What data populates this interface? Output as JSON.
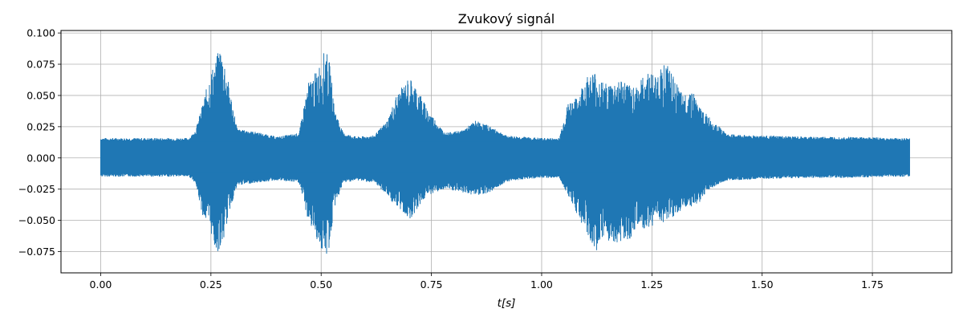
{
  "chart_data": {
    "type": "line",
    "title": "Zvukový signál",
    "xlabel": "t[s]",
    "ylabel": "",
    "xlim": [
      -0.09,
      1.93
    ],
    "ylim": [
      -0.092,
      0.102
    ],
    "xticks": [
      0.0,
      0.25,
      0.5,
      0.75,
      1.0,
      1.25,
      1.5,
      1.75
    ],
    "xtick_labels": [
      "0.00",
      "0.25",
      "0.50",
      "0.75",
      "1.00",
      "1.25",
      "1.50",
      "1.75"
    ],
    "yticks": [
      -0.075,
      -0.05,
      -0.025,
      0.0,
      0.025,
      0.05,
      0.075,
      0.1
    ],
    "ytick_labels": [
      "−0.075",
      "−0.050",
      "−0.025",
      "0.000",
      "0.025",
      "0.050",
      "0.075",
      "0.100"
    ],
    "grid": true,
    "line_color": "#1f77b4",
    "series": [
      {
        "x": [
          0.0,
          0.05,
          0.1,
          0.15,
          0.2,
          0.215,
          0.23,
          0.25,
          0.26,
          0.27,
          0.28,
          0.29,
          0.31,
          0.35,
          0.4,
          0.45,
          0.47,
          0.49,
          0.51,
          0.52,
          0.53,
          0.55,
          0.58,
          0.62,
          0.65,
          0.67,
          0.69,
          0.7,
          0.72,
          0.74,
          0.78,
          0.82,
          0.85,
          0.88,
          0.92,
          0.96,
          1.0,
          1.04,
          1.06,
          1.08,
          1.1,
          1.12,
          1.14,
          1.16,
          1.18,
          1.2,
          1.22,
          1.24,
          1.26,
          1.28,
          1.3,
          1.32,
          1.34,
          1.36,
          1.38,
          1.42,
          1.5,
          1.6,
          1.7,
          1.8,
          1.835
        ],
        "max": [
          0.016,
          0.016,
          0.016,
          0.016,
          0.016,
          0.022,
          0.042,
          0.07,
          0.077,
          0.09,
          0.08,
          0.06,
          0.023,
          0.021,
          0.017,
          0.02,
          0.06,
          0.07,
          0.088,
          0.075,
          0.04,
          0.02,
          0.017,
          0.018,
          0.03,
          0.05,
          0.06,
          0.065,
          0.055,
          0.04,
          0.02,
          0.022,
          0.03,
          0.026,
          0.018,
          0.017,
          0.016,
          0.016,
          0.045,
          0.048,
          0.065,
          0.07,
          0.06,
          0.06,
          0.064,
          0.058,
          0.06,
          0.07,
          0.066,
          0.078,
          0.064,
          0.05,
          0.056,
          0.04,
          0.033,
          0.019,
          0.018,
          0.017,
          0.017,
          0.016,
          0.016
        ],
        "min": [
          -0.015,
          -0.015,
          -0.015,
          -0.015,
          -0.015,
          -0.02,
          -0.045,
          -0.06,
          -0.075,
          -0.075,
          -0.065,
          -0.045,
          -0.022,
          -0.02,
          -0.018,
          -0.02,
          -0.05,
          -0.065,
          -0.083,
          -0.07,
          -0.04,
          -0.02,
          -0.018,
          -0.02,
          -0.03,
          -0.04,
          -0.045,
          -0.05,
          -0.04,
          -0.03,
          -0.025,
          -0.028,
          -0.03,
          -0.028,
          -0.019,
          -0.017,
          -0.016,
          -0.016,
          -0.03,
          -0.045,
          -0.06,
          -0.075,
          -0.07,
          -0.07,
          -0.067,
          -0.065,
          -0.055,
          -0.06,
          -0.05,
          -0.052,
          -0.05,
          -0.04,
          -0.04,
          -0.035,
          -0.025,
          -0.018,
          -0.017,
          -0.016,
          -0.016,
          -0.015,
          -0.015
        ]
      }
    ]
  }
}
